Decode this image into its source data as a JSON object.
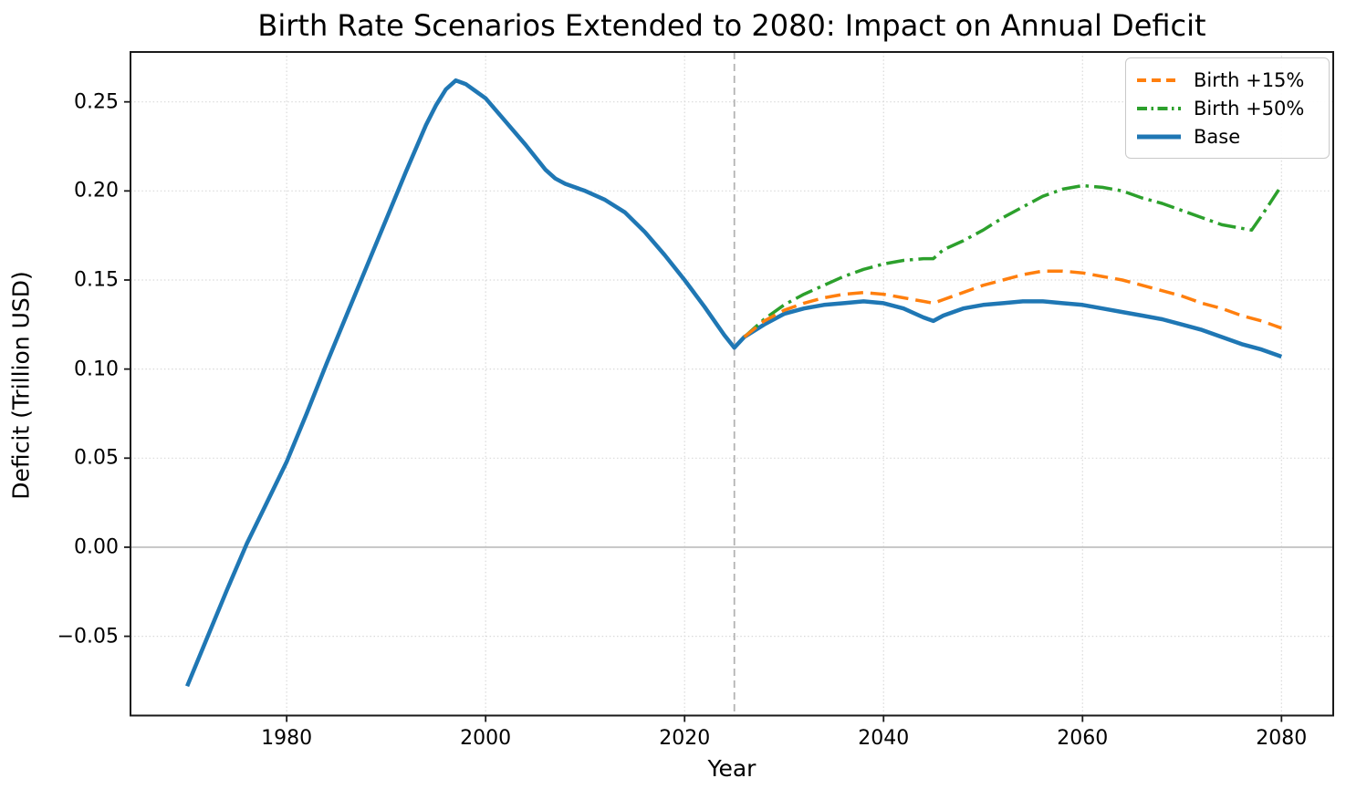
{
  "figure": {
    "background": "#ffffff"
  },
  "chart_data": {
    "type": "line",
    "title": "Birth Rate Scenarios Extended to 2080: Impact on Annual Deficit",
    "xlabel": "Year",
    "ylabel": "Deficit (Trillion USD)",
    "x_range": [
      1964.3,
      2085.2
    ],
    "y_range": [
      -0.0945,
      0.278
    ],
    "x_ticks": [
      1980,
      2000,
      2020,
      2040,
      2060,
      2080
    ],
    "x_tick_labels": [
      "1980",
      "2000",
      "2020",
      "2040",
      "2060",
      "2080"
    ],
    "y_ticks": [
      -0.05,
      0.0,
      0.05,
      0.1,
      0.15,
      0.2,
      0.25
    ],
    "y_tick_labels": [
      "−0.05",
      "0.00",
      "0.05",
      "0.10",
      "0.15",
      "0.20",
      "0.25"
    ],
    "grid": true,
    "grid_color": "#d9d9d9",
    "zero_line": {
      "y": 0.0,
      "color": "#c4c4c4"
    },
    "forecast_start_line": {
      "x": 2025,
      "color": "#b3b3b3",
      "style": "dashed"
    },
    "legend_position": "upper right",
    "series": [
      {
        "name": "Birth +15%",
        "color": "#ff7f0e",
        "style": "dashed",
        "width": 3.5,
        "points": [
          [
            2026,
            0.118
          ],
          [
            2028,
            0.127
          ],
          [
            2030,
            0.133
          ],
          [
            2032,
            0.137
          ],
          [
            2034,
            0.14
          ],
          [
            2036,
            0.142
          ],
          [
            2038,
            0.143
          ],
          [
            2040,
            0.142
          ],
          [
            2042,
            0.14
          ],
          [
            2044,
            0.138
          ],
          [
            2045,
            0.137
          ],
          [
            2046,
            0.139
          ],
          [
            2048,
            0.143
          ],
          [
            2050,
            0.147
          ],
          [
            2052,
            0.15
          ],
          [
            2054,
            0.153
          ],
          [
            2056,
            0.155
          ],
          [
            2058,
            0.155
          ],
          [
            2060,
            0.154
          ],
          [
            2062,
            0.152
          ],
          [
            2064,
            0.15
          ],
          [
            2066,
            0.147
          ],
          [
            2068,
            0.144
          ],
          [
            2070,
            0.141
          ],
          [
            2072,
            0.137
          ],
          [
            2074,
            0.134
          ],
          [
            2076,
            0.13
          ],
          [
            2078,
            0.127
          ],
          [
            2080,
            0.123
          ]
        ]
      },
      {
        "name": "Birth +50%",
        "color": "#2ca02c",
        "style": "dashdot",
        "width": 3.5,
        "points": [
          [
            2026,
            0.118
          ],
          [
            2028,
            0.128
          ],
          [
            2030,
            0.136
          ],
          [
            2032,
            0.142
          ],
          [
            2034,
            0.147
          ],
          [
            2036,
            0.152
          ],
          [
            2038,
            0.156
          ],
          [
            2040,
            0.159
          ],
          [
            2042,
            0.161
          ],
          [
            2044,
            0.162
          ],
          [
            2045,
            0.162
          ],
          [
            2046,
            0.167
          ],
          [
            2048,
            0.172
          ],
          [
            2050,
            0.178
          ],
          [
            2052,
            0.185
          ],
          [
            2054,
            0.191
          ],
          [
            2056,
            0.197
          ],
          [
            2058,
            0.201
          ],
          [
            2060,
            0.203
          ],
          [
            2062,
            0.202
          ],
          [
            2064,
            0.2
          ],
          [
            2066,
            0.196
          ],
          [
            2068,
            0.193
          ],
          [
            2070,
            0.189
          ],
          [
            2072,
            0.185
          ],
          [
            2074,
            0.181
          ],
          [
            2076,
            0.179
          ],
          [
            2077,
            0.178
          ],
          [
            2078,
            0.186
          ],
          [
            2080,
            0.203
          ]
        ]
      },
      {
        "name": "Base",
        "color": "#1f77b4",
        "style": "solid",
        "width": 4.5,
        "points": [
          [
            1970,
            -0.078
          ],
          [
            1972,
            -0.051
          ],
          [
            1974,
            -0.024
          ],
          [
            1976,
            0.002
          ],
          [
            1978,
            0.025
          ],
          [
            1980,
            0.048
          ],
          [
            1982,
            0.075
          ],
          [
            1984,
            0.103
          ],
          [
            1986,
            0.13
          ],
          [
            1988,
            0.157
          ],
          [
            1990,
            0.184
          ],
          [
            1992,
            0.211
          ],
          [
            1994,
            0.237
          ],
          [
            1995,
            0.248
          ],
          [
            1996,
            0.257
          ],
          [
            1997,
            0.262
          ],
          [
            1998,
            0.26
          ],
          [
            1999,
            0.256
          ],
          [
            2000,
            0.252
          ],
          [
            2002,
            0.239
          ],
          [
            2004,
            0.226
          ],
          [
            2006,
            0.212
          ],
          [
            2007,
            0.207
          ],
          [
            2008,
            0.204
          ],
          [
            2010,
            0.2
          ],
          [
            2012,
            0.195
          ],
          [
            2014,
            0.188
          ],
          [
            2016,
            0.177
          ],
          [
            2018,
            0.164
          ],
          [
            2020,
            0.15
          ],
          [
            2022,
            0.135
          ],
          [
            2024,
            0.119
          ],
          [
            2025,
            0.112
          ],
          [
            2026,
            0.118
          ],
          [
            2028,
            0.125
          ],
          [
            2030,
            0.131
          ],
          [
            2032,
            0.134
          ],
          [
            2034,
            0.136
          ],
          [
            2036,
            0.137
          ],
          [
            2038,
            0.138
          ],
          [
            2040,
            0.137
          ],
          [
            2042,
            0.134
          ],
          [
            2044,
            0.129
          ],
          [
            2045,
            0.127
          ],
          [
            2046,
            0.13
          ],
          [
            2048,
            0.134
          ],
          [
            2050,
            0.136
          ],
          [
            2052,
            0.137
          ],
          [
            2054,
            0.138
          ],
          [
            2056,
            0.138
          ],
          [
            2058,
            0.137
          ],
          [
            2060,
            0.136
          ],
          [
            2062,
            0.134
          ],
          [
            2064,
            0.132
          ],
          [
            2066,
            0.13
          ],
          [
            2068,
            0.128
          ],
          [
            2070,
            0.125
          ],
          [
            2072,
            0.122
          ],
          [
            2074,
            0.118
          ],
          [
            2076,
            0.114
          ],
          [
            2078,
            0.111
          ],
          [
            2080,
            0.107
          ]
        ]
      }
    ]
  }
}
